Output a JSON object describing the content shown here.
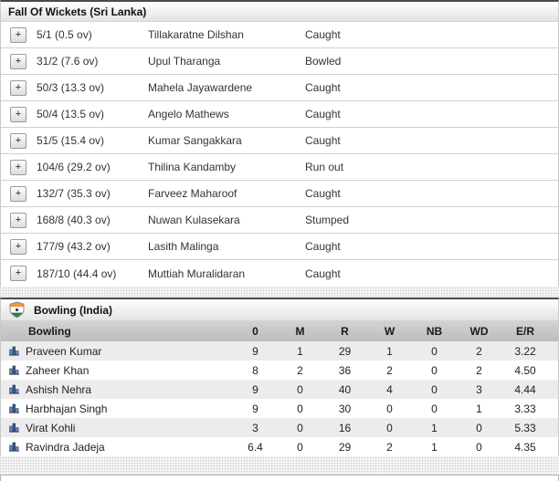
{
  "fall_of_wickets": {
    "title": "Fall Of Wickets (Sri Lanka)",
    "expand_label": "+",
    "rows": [
      {
        "score": "5/1 (0.5 ov)",
        "batsman": "Tillakaratne Dilshan",
        "dismissal": "Caught"
      },
      {
        "score": "31/2 (7.6 ov)",
        "batsman": "Upul Tharanga",
        "dismissal": "Bowled"
      },
      {
        "score": "50/3 (13.3 ov)",
        "batsman": "Mahela Jayawardene",
        "dismissal": "Caught"
      },
      {
        "score": "50/4 (13.5 ov)",
        "batsman": "Angelo Mathews",
        "dismissal": "Caught"
      },
      {
        "score": "51/5 (15.4 ov)",
        "batsman": "Kumar Sangakkara",
        "dismissal": "Caught"
      },
      {
        "score": "104/6 (29.2 ov)",
        "batsman": "Thilina Kandamby",
        "dismissal": "Run out"
      },
      {
        "score": "132/7 (35.3 ov)",
        "batsman": "Farveez Maharoof",
        "dismissal": "Caught"
      },
      {
        "score": "168/8 (40.3 ov)",
        "batsman": "Nuwan Kulasekara",
        "dismissal": "Stumped"
      },
      {
        "score": "177/9 (43.2 ov)",
        "batsman": "Lasith Malinga",
        "dismissal": "Caught"
      },
      {
        "score": "187/10 (44.4 ov)",
        "batsman": "Muttiah Muralidaran",
        "dismissal": "Caught"
      }
    ]
  },
  "bowling": {
    "title": "Bowling (India)",
    "flag_icon": "india-flag-icon",
    "table": {
      "name_header": "Bowling",
      "columns": [
        "0",
        "M",
        "R",
        "W",
        "NB",
        "WD",
        "E/R"
      ],
      "rows": [
        {
          "bowler": "Praveen Kumar",
          "figures": [
            "9",
            "1",
            "29",
            "1",
            "0",
            "2",
            "3.22"
          ]
        },
        {
          "bowler": "Zaheer Khan",
          "figures": [
            "8",
            "2",
            "36",
            "2",
            "0",
            "2",
            "4.50"
          ]
        },
        {
          "bowler": "Ashish Nehra",
          "figures": [
            "9",
            "0",
            "40",
            "4",
            "0",
            "3",
            "4.44"
          ]
        },
        {
          "bowler": "Harbhajan Singh",
          "figures": [
            "9",
            "0",
            "30",
            "0",
            "0",
            "1",
            "3.33"
          ]
        },
        {
          "bowler": "Virat Kohli",
          "figures": [
            "3",
            "0",
            "16",
            "0",
            "1",
            "0",
            "5.33"
          ]
        },
        {
          "bowler": "Ravindra Jadeja",
          "figures": [
            "6.4",
            "0",
            "29",
            "2",
            "1",
            "0",
            "4.35"
          ]
        }
      ]
    }
  },
  "colors": {
    "section_top_border": "#4a4a4a",
    "row_divider": "#cfcfcf",
    "table_header_bg": "#c5c5c5",
    "shaded_row_bg": "#ececec",
    "flag_saffron": "#f6933d",
    "flag_green": "#2f7d33",
    "flag_chakra_blue": "#1a3c8c",
    "bar_icon_blue": "#36598c"
  }
}
